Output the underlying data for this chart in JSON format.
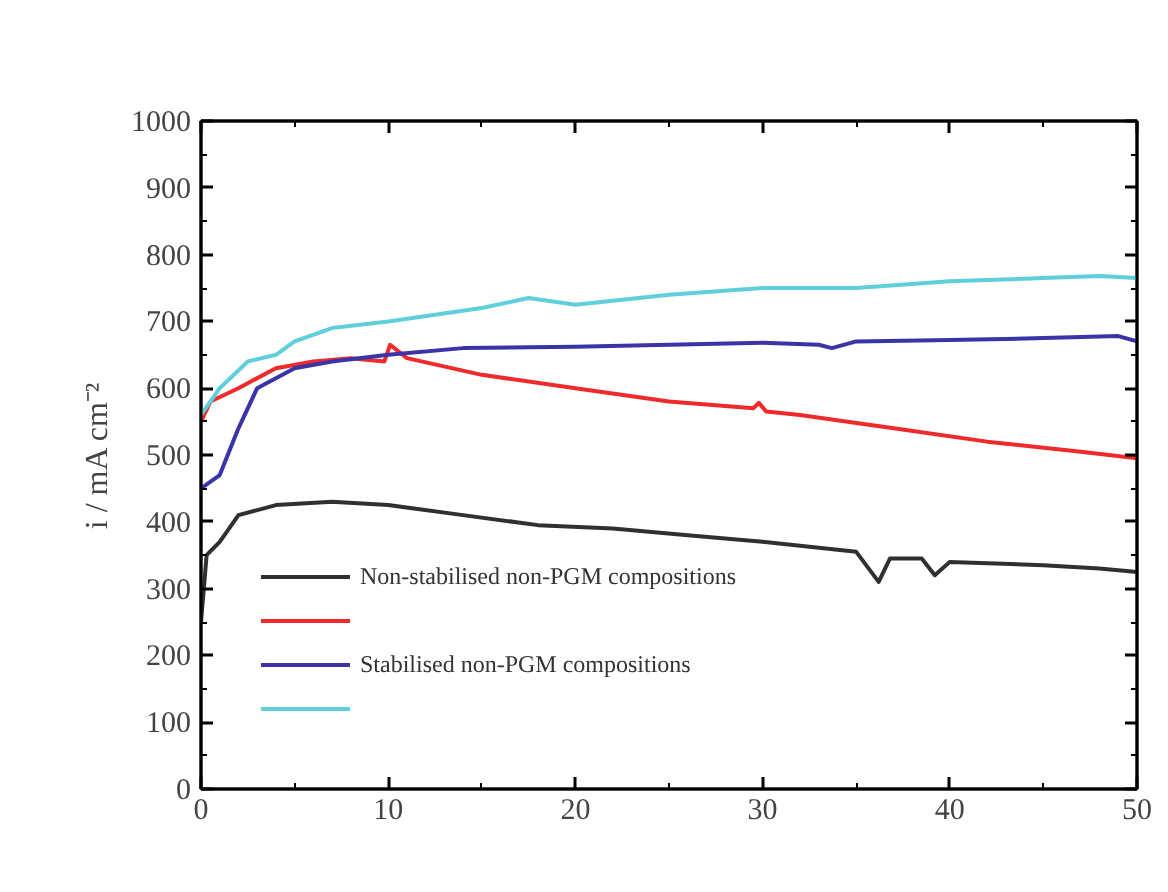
{
  "chart_data": {
    "type": "line",
    "ylabel": "i / mA cm⁻²",
    "legend": "bottom left",
    "xlim": [
      0,
      50
    ],
    "ylim": [
      0,
      1000
    ],
    "xticks": [
      0,
      10,
      20,
      30,
      40,
      50
    ],
    "yticks": [
      0,
      100,
      200,
      300,
      400,
      500,
      600,
      700,
      800,
      900,
      1000
    ],
    "grid": false,
    "line_style": "solid",
    "marker": "none",
    "series": [
      {
        "name": "Non-stabilised non-PGM compositions",
        "color": "#303030",
        "x": [
          0,
          0.3,
          1,
          2,
          4,
          7,
          10,
          14,
          18,
          22,
          26,
          30,
          35,
          36.2,
          36.8,
          38.5,
          39.2,
          40,
          45,
          48,
          50
        ],
        "values": [
          250,
          350,
          370,
          410,
          425,
          430,
          425,
          410,
          395,
          390,
          380,
          370,
          355,
          310,
          345,
          345,
          320,
          340,
          335,
          330,
          325
        ]
      },
      {
        "color": "#ee2a2a",
        "x": [
          0,
          0.5,
          2,
          4,
          6,
          8,
          9.8,
          10.1,
          11,
          15,
          20,
          25,
          29.5,
          29.8,
          30.2,
          32,
          37,
          42,
          47,
          50
        ],
        "values": [
          550,
          580,
          600,
          630,
          640,
          645,
          640,
          665,
          645,
          620,
          600,
          580,
          570,
          578,
          565,
          560,
          540,
          520,
          505,
          495
        ]
      },
      {
        "name": "Stabilised non-PGM compositions",
        "color": "#3a34a8",
        "x": [
          0,
          1,
          2,
          3,
          5,
          7,
          10,
          14,
          20,
          25,
          30,
          33,
          33.7,
          35,
          40,
          45,
          49,
          50
        ],
        "values": [
          450,
          470,
          540,
          600,
          630,
          640,
          650,
          660,
          662,
          665,
          668,
          665,
          660,
          670,
          672,
          675,
          678,
          670
        ]
      },
      {
        "color": "#5fcfdc",
        "x": [
          0,
          1,
          2.5,
          4,
          5,
          7,
          10,
          15,
          17.5,
          20,
          25,
          30,
          35,
          40,
          45,
          48,
          50
        ],
        "values": [
          560,
          600,
          640,
          650,
          670,
          690,
          700,
          720,
          735,
          725,
          740,
          750,
          750,
          760,
          765,
          768,
          765
        ]
      }
    ]
  }
}
